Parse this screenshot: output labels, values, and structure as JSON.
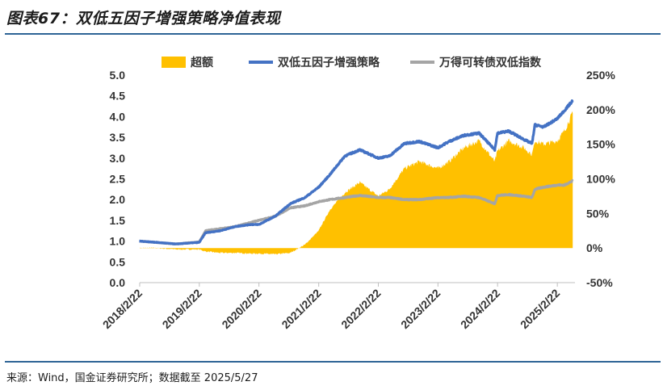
{
  "header": {
    "title": "图表67：双低五因子增强策略净值表现"
  },
  "footer": {
    "source": "来源：Wind，国金证券研究所；数据截至 2025/5/27"
  },
  "chart_data": {
    "type": "line",
    "legend_position": "top",
    "grid": false,
    "x_tick_labels": [
      "2018/2/22",
      "2019/2/22",
      "2020/2/22",
      "2021/2/22",
      "2022/2/22",
      "2023/2/22",
      "2024/2/22",
      "2025/2/22"
    ],
    "y_left": {
      "ticks": [
        "0.0",
        "0.5",
        "1.0",
        "1.5",
        "2.0",
        "2.5",
        "3.0",
        "3.5",
        "4.0",
        "4.5",
        "5.0"
      ],
      "ylim": [
        0,
        5
      ]
    },
    "y_right": {
      "ticks": [
        "-50%",
        "0%",
        "50%",
        "100%",
        "150%",
        "200%",
        "250%"
      ],
      "ylim": [
        -0.5,
        2.5
      ]
    },
    "x": [
      "2018-02-22",
      "2018-06-01",
      "2018-10-01",
      "2019-02-22",
      "2019-04-01",
      "2019-07-01",
      "2019-10-01",
      "2020-01-02",
      "2020-02-22",
      "2020-06-01",
      "2020-09-01",
      "2020-12-01",
      "2021-02-22",
      "2021-05-01",
      "2021-08-01",
      "2021-11-01",
      "2022-02-22",
      "2022-05-01",
      "2022-08-01",
      "2022-11-01",
      "2023-02-22",
      "2023-05-01",
      "2023-08-01",
      "2023-11-01",
      "2024-02-05",
      "2024-02-22",
      "2024-05-01",
      "2024-08-01",
      "2024-09-20",
      "2024-10-08",
      "2024-12-01",
      "2025-02-22",
      "2025-04-08",
      "2025-05-27"
    ],
    "series": [
      {
        "name": "超额",
        "axis": "right",
        "kind": "area",
        "color": "#FFC000",
        "values": [
          0.0,
          0.0,
          -0.02,
          -0.02,
          -0.05,
          -0.07,
          -0.07,
          -0.08,
          -0.08,
          -0.09,
          -0.07,
          0.05,
          0.25,
          0.55,
          0.8,
          0.95,
          0.75,
          0.85,
          1.15,
          1.25,
          1.15,
          1.25,
          1.45,
          1.55,
          1.25,
          1.4,
          1.55,
          1.45,
          1.35,
          1.55,
          1.5,
          1.55,
          1.7,
          1.95
        ]
      },
      {
        "name": "双低五因子增强策略",
        "axis": "left",
        "kind": "line",
        "color": "#4472C4",
        "values": [
          1.0,
          0.97,
          0.93,
          0.97,
          1.2,
          1.25,
          1.35,
          1.4,
          1.4,
          1.6,
          1.9,
          2.05,
          2.3,
          2.6,
          3.05,
          3.2,
          3.0,
          3.05,
          3.35,
          3.4,
          3.25,
          3.4,
          3.55,
          3.6,
          3.2,
          3.6,
          3.65,
          3.45,
          3.35,
          3.8,
          3.75,
          3.95,
          4.15,
          4.38
        ]
      },
      {
        "name": "万得可转债双低指数",
        "axis": "left",
        "kind": "line",
        "color": "#A5A5A5",
        "values": [
          1.0,
          0.97,
          0.93,
          0.98,
          1.25,
          1.3,
          1.35,
          1.45,
          1.5,
          1.6,
          1.8,
          1.85,
          1.95,
          2.0,
          2.05,
          2.1,
          2.05,
          2.05,
          2.0,
          2.0,
          2.05,
          2.05,
          2.08,
          2.05,
          1.9,
          2.1,
          2.12,
          2.08,
          2.05,
          2.25,
          2.3,
          2.35,
          2.35,
          2.45
        ]
      }
    ]
  }
}
